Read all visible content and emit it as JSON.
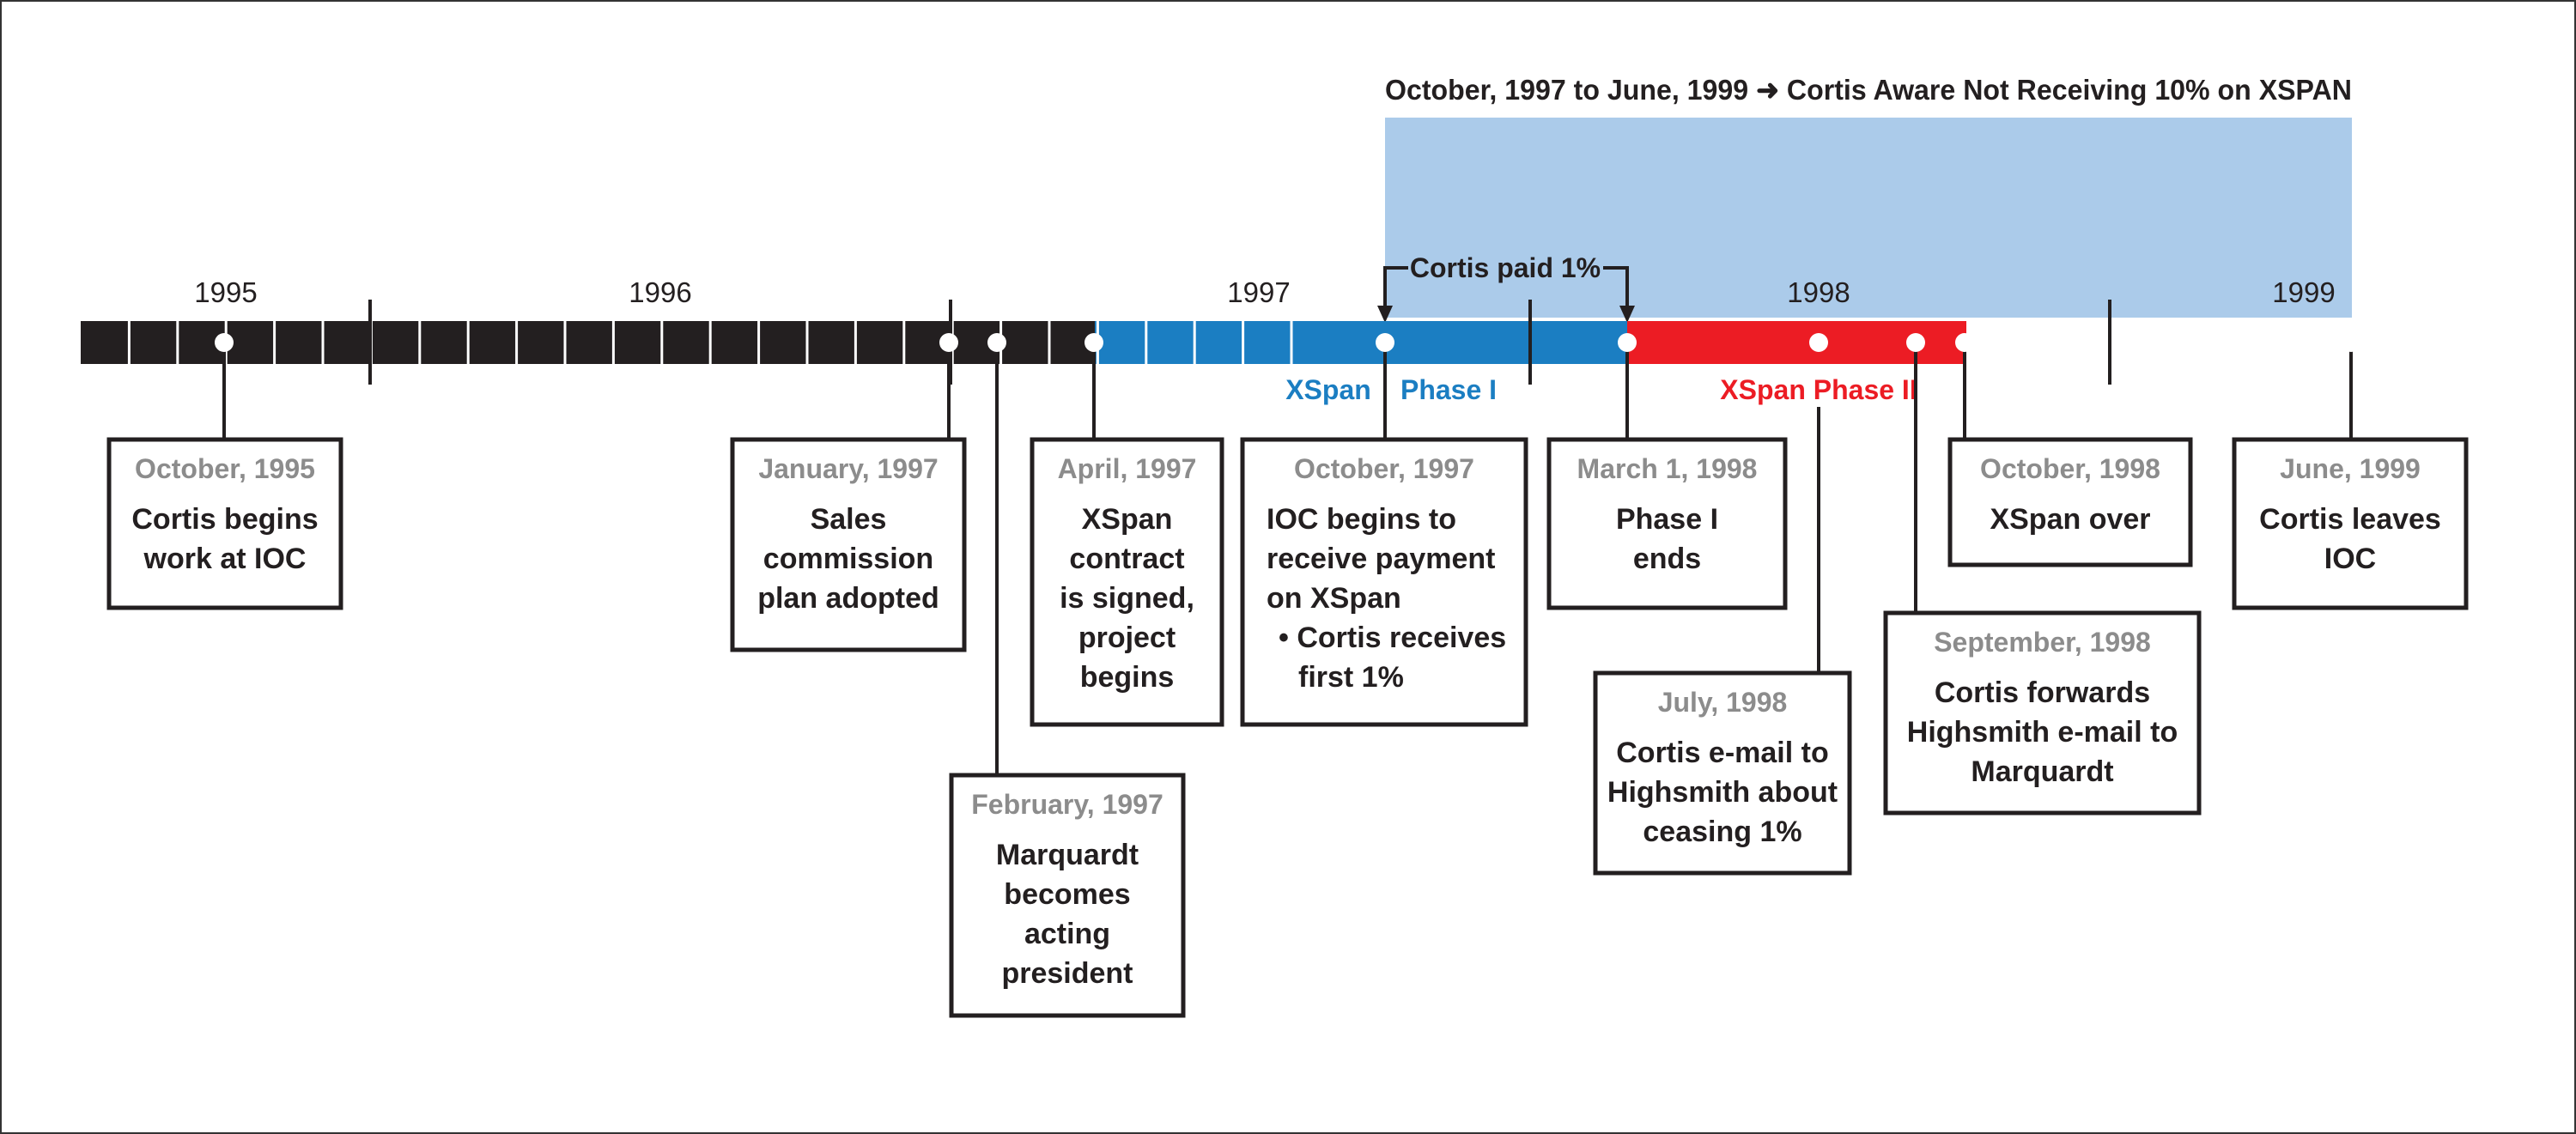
{
  "colors": {
    "track": "#231f20",
    "phase1": "#1b7ec2",
    "phase2": "#ec1c24",
    "highlight": "#abcbea",
    "date_text": "#8c8c8c",
    "text": "#231f20",
    "background": "#ffffff"
  },
  "banner": {
    "text": "October, 1997 to June, 1999 ➜ Cortis Aware Not Receiving 10% on XSPAN"
  },
  "paid_bracket": {
    "label": "Cortis paid 1%"
  },
  "phases": {
    "phase1_word1": "XSpan",
    "phase1_word2": "Phase I",
    "phase2": "XSpan Phase II"
  },
  "years": [
    "1995",
    "1996",
    "1997",
    "1998",
    "1999"
  ],
  "events": [
    {
      "date": "October, 1995",
      "lines": [
        "Cortis begins",
        "work at IOC"
      ]
    },
    {
      "date": "January, 1997",
      "lines": [
        "Sales",
        "commission",
        "plan adopted"
      ]
    },
    {
      "date": "February, 1997",
      "lines": [
        "Marquardt",
        "becomes",
        "acting",
        "president"
      ]
    },
    {
      "date": "April, 1997",
      "lines": [
        "XSpan",
        "contract",
        "is signed,",
        "project",
        "begins"
      ]
    },
    {
      "date": "October, 1997",
      "lines": [
        "IOC begins to",
        "receive payment",
        "on XSpan",
        "• Cortis receives",
        "first 1%"
      ]
    },
    {
      "date": "March 1, 1998",
      "lines": [
        "Phase I",
        "ends"
      ]
    },
    {
      "date": "July, 1998",
      "lines": [
        "Cortis e-mail to",
        "Highsmith about",
        "ceasing 1%"
      ]
    },
    {
      "date": "September, 1998",
      "lines": [
        "Cortis forwards",
        "Highsmith e-mail to",
        "Marquardt"
      ]
    },
    {
      "date": "October, 1998",
      "lines": [
        "XSpan over"
      ]
    },
    {
      "date": "June, 1999",
      "lines": [
        "Cortis leaves",
        "IOC"
      ]
    }
  ]
}
